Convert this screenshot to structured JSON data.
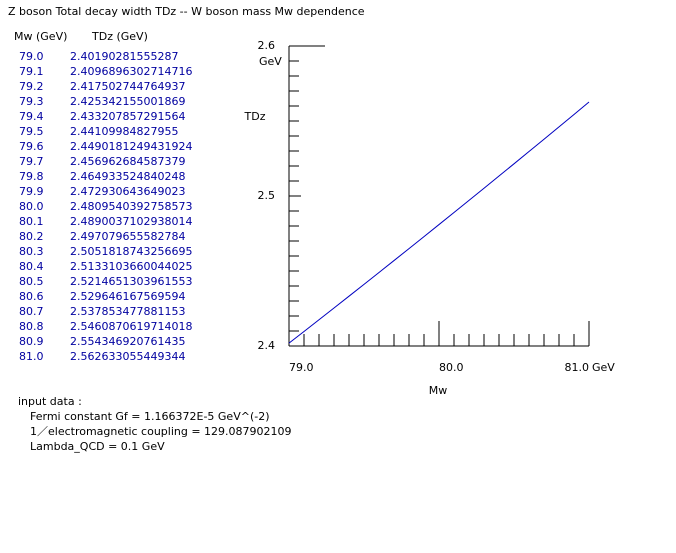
{
  "title": "Z boson Total decay width TDz -- W boson mass Mw dependence",
  "table": {
    "headers": [
      "Mw (GeV)",
      "TDz (GeV)"
    ]
  },
  "chart_data": {
    "type": "line",
    "x": [
      79.0,
      79.1,
      79.2,
      79.3,
      79.4,
      79.5,
      79.6,
      79.7,
      79.8,
      79.9,
      80.0,
      80.1,
      80.2,
      80.3,
      80.4,
      80.5,
      80.6,
      80.7,
      80.8,
      80.9,
      81.0
    ],
    "x_labels": [
      "79.0",
      "79.1",
      "79.2",
      "79.3",
      "79.4",
      "79.5",
      "79.6",
      "79.7",
      "79.8",
      "79.9",
      "80.0",
      "80.1",
      "80.2",
      "80.3",
      "80.4",
      "80.5",
      "80.6",
      "80.7",
      "80.8",
      "80.9",
      "81.0"
    ],
    "values": [
      2.40190281555287,
      2.4096896302714716,
      2.417502744764937,
      2.425342155001869,
      2.433207857291564,
      2.44109984827955,
      2.4490181249431924,
      2.456962684587379,
      2.464933524840248,
      2.472930643649023,
      2.4809540392758573,
      2.4890037102938014,
      2.497079655582784,
      2.5051818743256695,
      2.5133103660044025,
      2.5214651303961553,
      2.529646167569594,
      2.537853477881153,
      2.5460870619714018,
      2.554346920761435,
      2.562633055449344
    ],
    "color": "#0000c0",
    "xlim": [
      79.0,
      81.0
    ],
    "xticks": [
      {
        "value": 79.0,
        "label": "79.0"
      },
      {
        "value": 80.0,
        "label": "80.0"
      },
      {
        "value": 81.0,
        "label": "81.0"
      }
    ],
    "ylim": [
      2.4,
      2.6
    ],
    "yticks": [
      2.4,
      2.5,
      2.6
    ],
    "x_unit": "GeV",
    "y_unit": "GeV",
    "x_label": "Mw",
    "y_label": "TDz"
  },
  "input_data": {
    "heading": "input data :",
    "lines": [
      "Fermi constant  Gf = 1.166372E-5 GeV^(-2)",
      "1／electromagnetic coupling = 129.087902109",
      "Lambda_QCD = 0.1 GeV"
    ]
  }
}
